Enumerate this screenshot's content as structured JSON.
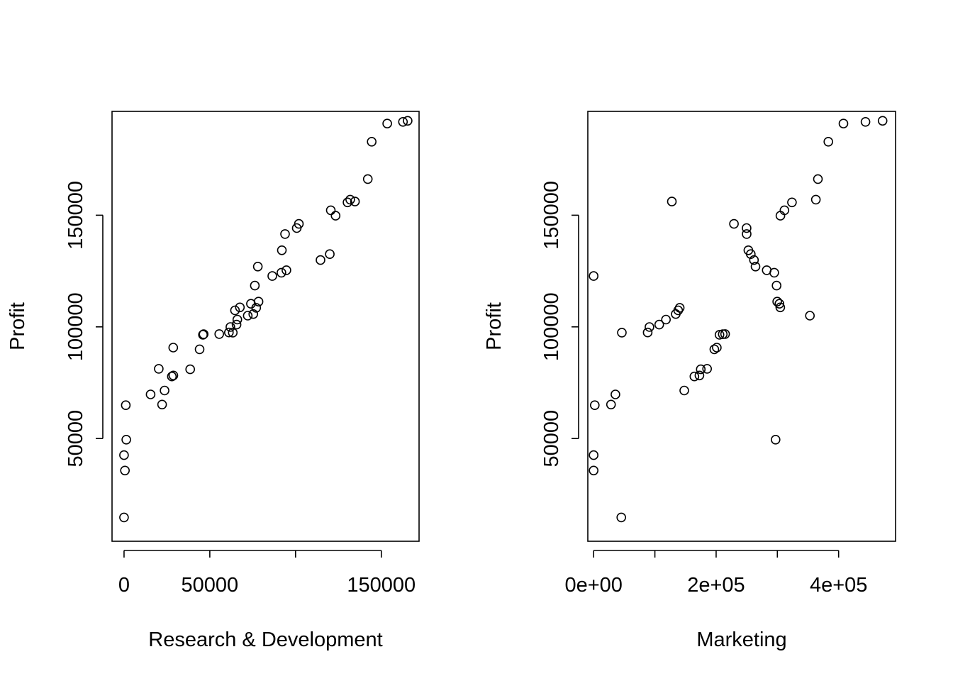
{
  "chart_data": [
    {
      "type": "scatter",
      "title": "",
      "xlabel": "Research & Development",
      "ylabel": "Profit",
      "xlim": [
        -7000,
        172000
      ],
      "ylim": [
        4000,
        196500
      ],
      "xticks": [
        0,
        50000,
        150000
      ],
      "xtick_labels": [
        "0",
        "50000",
        "150000"
      ],
      "yticks": [
        50000,
        100000,
        150000
      ],
      "ytick_labels": [
        "50000",
        "100000",
        "150000"
      ],
      "grid": false,
      "points": [
        [
          165349,
          192262
        ],
        [
          162598,
          191792
        ],
        [
          153442,
          191050
        ],
        [
          144372,
          182902
        ],
        [
          142107,
          166188
        ],
        [
          131877,
          156991
        ],
        [
          134615,
          156123
        ],
        [
          130298,
          155753
        ],
        [
          120543,
          152212
        ],
        [
          123335,
          149760
        ],
        [
          101913,
          146122
        ],
        [
          100672,
          144259
        ],
        [
          93864,
          141586
        ],
        [
          91993,
          134307
        ],
        [
          119943,
          132602
        ],
        [
          114524,
          129917
        ],
        [
          78013,
          126993
        ],
        [
          94657,
          125371
        ],
        [
          91749,
          124267
        ],
        [
          86420,
          122777
        ],
        [
          76254,
          118474
        ],
        [
          78389,
          111314
        ],
        [
          73995,
          110352
        ],
        [
          67533,
          108734
        ],
        [
          77044,
          108552
        ],
        [
          64665,
          107404
        ],
        [
          75329,
          105734
        ],
        [
          72108,
          105008
        ],
        [
          66052,
          103282
        ],
        [
          65606,
          101004
        ],
        [
          61994,
          99938
        ],
        [
          61136,
          97484
        ],
        [
          63409,
          97428
        ],
        [
          55494,
          96779
        ],
        [
          46427,
          96713
        ],
        [
          46014,
          96480
        ],
        [
          28664,
          90708
        ],
        [
          44070,
          89949
        ],
        [
          20230,
          81230
        ],
        [
          38558,
          81006
        ],
        [
          28754,
          78240
        ],
        [
          27893,
          77799
        ],
        [
          23641,
          71499
        ],
        [
          15506,
          69759
        ],
        [
          22178,
          65201
        ],
        [
          1001,
          64927
        ],
        [
          1315,
          49491
        ],
        [
          0,
          42560
        ],
        [
          543,
          35674
        ],
        [
          0,
          14681
        ]
      ]
    },
    {
      "type": "scatter",
      "title": "",
      "xlabel": "Marketing",
      "ylabel": "Profit",
      "xlim": [
        -9500,
        493000
      ],
      "ylim": [
        4000,
        196500
      ],
      "xticks": [
        0,
        200000,
        400000
      ],
      "xtick_labels": [
        "0e+00",
        "2e+05",
        "4e+05"
      ],
      "yticks": [
        50000,
        100000,
        150000
      ],
      "ytick_labels": [
        "50000",
        "100000",
        "150000"
      ],
      "grid": false,
      "points": [
        [
          471784,
          192262
        ],
        [
          443899,
          191792
        ],
        [
          407934,
          191050
        ],
        [
          383200,
          182902
        ],
        [
          366168,
          166188
        ],
        [
          362861,
          156991
        ],
        [
          127717,
          156123
        ],
        [
          323877,
          155753
        ],
        [
          311613,
          152212
        ],
        [
          304982,
          149760
        ],
        [
          229161,
          146122
        ],
        [
          249745,
          144259
        ],
        [
          249839,
          141586
        ],
        [
          252665,
          134307
        ],
        [
          256513,
          132602
        ],
        [
          261776,
          129917
        ],
        [
          264346,
          126993
        ],
        [
          282574,
          125371
        ],
        [
          294920,
          124267
        ],
        [
          0,
          122777
        ],
        [
          298664,
          118474
        ],
        [
          299737,
          111314
        ],
        [
          303320,
          110352
        ],
        [
          304768,
          108734
        ],
        [
          140575,
          108552
        ],
        [
          137962,
          107404
        ],
        [
          134051,
          105734
        ],
        [
          353184,
          105008
        ],
        [
          118148,
          103282
        ],
        [
          107138,
          101004
        ],
        [
          91131,
          99938
        ],
        [
          88219,
          97484
        ],
        [
          46085,
          97428
        ],
        [
          214635,
          96779
        ],
        [
          210798,
          96713
        ],
        [
          205517,
          96480
        ],
        [
          201127,
          90708
        ],
        [
          197029,
          89949
        ],
        [
          185265,
          81230
        ],
        [
          174999,
          81006
        ],
        [
          172795,
          78240
        ],
        [
          164470,
          77799
        ],
        [
          148001,
          71499
        ],
        [
          35534,
          69759
        ],
        [
          28335,
          65201
        ],
        [
          1904,
          64927
        ],
        [
          297114,
          49491
        ],
        [
          0,
          42560
        ],
        [
          0,
          35674
        ],
        [
          45173,
          14681
        ]
      ]
    }
  ]
}
